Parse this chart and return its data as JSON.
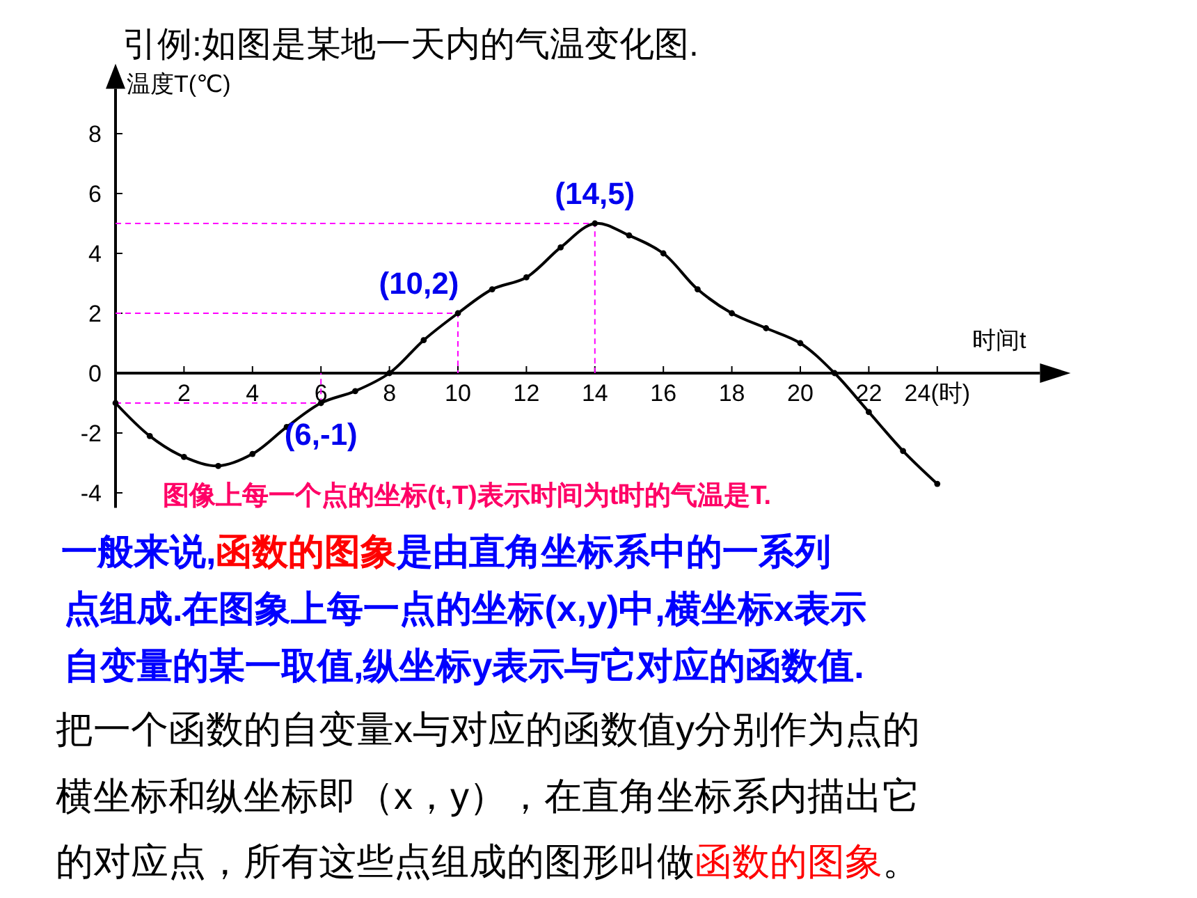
{
  "chart_data": {
    "type": "line",
    "title": "引例:如图是某地一天内的气温变化图.",
    "xlabel": "时间t",
    "ylabel": "温度T(℃)",
    "x": [
      0,
      1,
      2,
      3,
      4,
      5,
      6,
      7,
      8,
      9,
      10,
      11,
      12,
      13,
      14,
      15,
      16,
      17,
      18,
      19,
      20,
      21,
      22,
      23,
      24
    ],
    "series": [
      {
        "color": "#000000",
        "values": [
          -1,
          -2.1,
          -2.8,
          -3.1,
          -2.7,
          -1.8,
          -1,
          -0.6,
          0,
          1.1,
          2,
          2.8,
          3.2,
          4.2,
          5,
          4.6,
          4,
          2.8,
          2,
          1.5,
          1,
          0,
          -1.3,
          -2.6,
          -3.7
        ]
      },
      {
        "color": "#ff00ff",
        "x": [
          0,
          14,
          14
        ],
        "values": [
          5,
          5,
          0
        ],
        "marker": "none",
        "line_style": "dashed"
      },
      {
        "color": "#ff00ff",
        "x": [
          0,
          10,
          10
        ],
        "values": [
          2,
          2,
          0
        ],
        "marker": "none",
        "line_style": "dashed"
      },
      {
        "color": "#ff00ff",
        "x": [
          0,
          6,
          6
        ],
        "values": [
          -1,
          -1,
          0
        ],
        "marker": "none",
        "line_style": "dashed"
      }
    ],
    "xlim": [
      0,
      27
    ],
    "ylim": [
      -4.5,
      9.5
    ],
    "xticks": [
      2,
      4,
      6,
      8,
      10,
      12,
      14,
      16,
      18,
      20,
      22,
      {
        "value": 24,
        "label": "24(时)"
      }
    ],
    "yticks": [
      -4,
      -2,
      0,
      2,
      4,
      6,
      8
    ],
    "grid": false,
    "marker": "circle",
    "line_style": "solid",
    "annotations": [
      "图像上每一个点的坐标(t,T)表示时间为t时的气温是T.",
      "一般来说,",
      "函数的图象",
      "是由直角坐标系中的一系列",
      "点组成.在图象上每一点的坐标(x,y)中,横坐标x表示",
      "自变量的某一取值,纵坐标y表示与它对应的函数值.",
      "把一个函数的自变量x与对应的函数值y分别作为点的",
      "横坐标和纵坐标即（x，y），在直角坐标系内描出它",
      "的对应点，所有这些点组成的图形叫做",
      "函数的图象",
      "。",
      {
        "text": "(14,5)",
        "x": 14,
        "y": 5
      },
      {
        "text": "(10,2)",
        "x": 10,
        "y": 2
      },
      {
        "text": "(6,-1)",
        "x": 6,
        "y": -1
      }
    ]
  }
}
